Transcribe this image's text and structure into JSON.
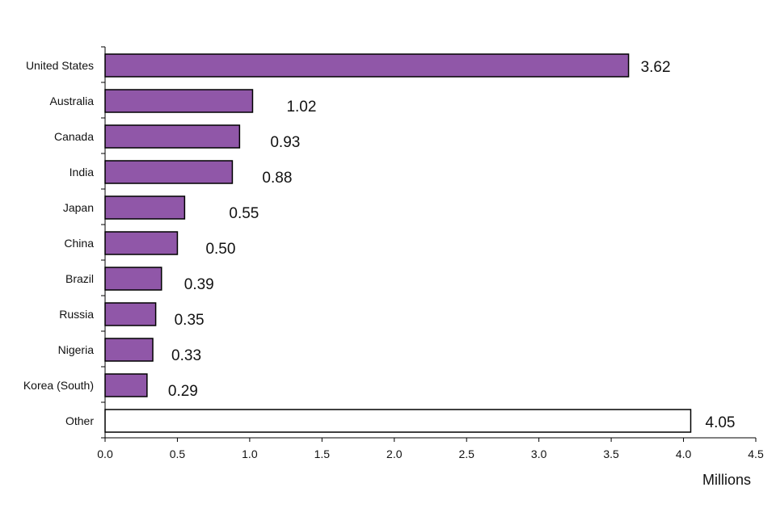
{
  "chart_data": {
    "type": "bar",
    "orientation": "horizontal",
    "categories": [
      "United States",
      "Australia",
      "Canada",
      "India",
      "Japan",
      "China",
      "Brazil",
      "Russia",
      "Nigeria",
      "Korea (South)",
      "Other"
    ],
    "values": [
      3.62,
      1.02,
      0.93,
      0.88,
      0.55,
      0.5,
      0.39,
      0.35,
      0.33,
      0.29,
      4.05
    ],
    "value_labels": [
      "3.62",
      "1.02",
      "0.93",
      "0.88",
      "0.55",
      "0.50",
      "0.39",
      "0.35",
      "0.33",
      "0.29",
      "4.05"
    ],
    "bar_colors": [
      "#9057a8",
      "#9057a8",
      "#9057a8",
      "#9057a8",
      "#9057a8",
      "#9057a8",
      "#9057a8",
      "#9057a8",
      "#9057a8",
      "#9057a8",
      "#ffffff"
    ],
    "xlabel": "Millions",
    "ylabel": "",
    "title": "",
    "xlim": [
      0,
      4.5
    ],
    "xticks": [
      "0.0",
      "0.5",
      "1.0",
      "1.5",
      "2.0",
      "2.5",
      "3.0",
      "3.5",
      "4.0",
      "4.5"
    ],
    "grid": false,
    "legend": "none"
  }
}
